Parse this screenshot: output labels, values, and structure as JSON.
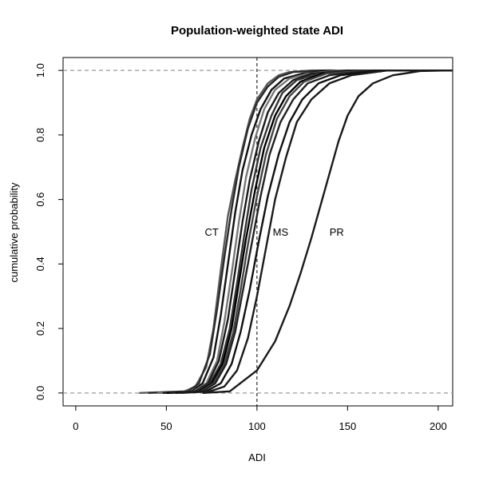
{
  "chart_data": {
    "type": "line",
    "title": "Population-weighted state ADI",
    "xlabel": "ADI",
    "ylabel": "cumulative probability",
    "xlim": [
      -7,
      208
    ],
    "ylim": [
      -0.04,
      1.04
    ],
    "xticks": [
      0,
      50,
      100,
      150,
      200
    ],
    "yticks": [
      0.0,
      0.2,
      0.4,
      0.6,
      0.8,
      1.0
    ],
    "x_tick_labels": [
      "0",
      "50",
      "100",
      "150",
      "200"
    ],
    "y_tick_labels": [
      "0.0",
      "0.2",
      "0.4",
      "0.6",
      "0.8",
      "1.0"
    ],
    "reference_lines": {
      "horizontal": [
        0.0,
        1.0
      ],
      "vertical": [
        100
      ]
    },
    "grid": false,
    "series_style": "empirical cumulative distribution curves, one per state, dark/gray lines",
    "annotations": [
      {
        "text": "CT",
        "x": 75,
        "y": 0.5
      },
      {
        "text": "MS",
        "x": 113,
        "y": 0.5
      },
      {
        "text": "PR",
        "x": 144,
        "y": 0.5
      }
    ],
    "series": [
      {
        "x": [
          35,
          60,
          66,
          72,
          76,
          80,
          84,
          88,
          92,
          96,
          100,
          106,
          112,
          118,
          130,
          210
        ],
        "y": [
          0,
          0.005,
          0.02,
          0.08,
          0.2,
          0.38,
          0.55,
          0.66,
          0.76,
          0.85,
          0.91,
          0.96,
          0.985,
          0.995,
          1,
          1
        ]
      },
      {
        "x": [
          40,
          62,
          68,
          74,
          78,
          82,
          86,
          90,
          95,
          100,
          106,
          112,
          120,
          135,
          210
        ],
        "y": [
          0,
          0.005,
          0.03,
          0.12,
          0.26,
          0.42,
          0.57,
          0.7,
          0.82,
          0.9,
          0.95,
          0.98,
          0.995,
          1,
          1
        ]
      },
      {
        "x": [
          45,
          64,
          70,
          76,
          80,
          84,
          88,
          92,
          97,
          102,
          108,
          115,
          125,
          140,
          210
        ],
        "y": [
          0,
          0.005,
          0.03,
          0.11,
          0.24,
          0.4,
          0.56,
          0.69,
          0.8,
          0.88,
          0.94,
          0.975,
          0.99,
          1,
          1
        ]
      },
      {
        "x": [
          45,
          65,
          72,
          78,
          82,
          86,
          90,
          94,
          99,
          104,
          110,
          118,
          128,
          145,
          210
        ],
        "y": [
          0,
          0.005,
          0.03,
          0.1,
          0.22,
          0.37,
          0.53,
          0.67,
          0.79,
          0.88,
          0.94,
          0.975,
          0.99,
          1,
          1
        ]
      },
      {
        "x": [
          48,
          66,
          73,
          79,
          84,
          88,
          92,
          96,
          101,
          106,
          112,
          120,
          130,
          150,
          210
        ],
        "y": [
          0,
          0.005,
          0.03,
          0.1,
          0.23,
          0.38,
          0.53,
          0.66,
          0.78,
          0.87,
          0.93,
          0.97,
          0.99,
          1,
          1
        ]
      },
      {
        "x": [
          50,
          67,
          74,
          80,
          85,
          89,
          93,
          97,
          102,
          108,
          114,
          122,
          134,
          155,
          210
        ],
        "y": [
          0,
          0.005,
          0.03,
          0.09,
          0.2,
          0.34,
          0.49,
          0.63,
          0.76,
          0.86,
          0.93,
          0.97,
          0.99,
          1,
          1
        ]
      },
      {
        "x": [
          50,
          68,
          75,
          81,
          86,
          90,
          94,
          99,
          104,
          110,
          116,
          124,
          136,
          158,
          210
        ],
        "y": [
          0,
          0.005,
          0.03,
          0.09,
          0.2,
          0.34,
          0.48,
          0.63,
          0.76,
          0.86,
          0.92,
          0.965,
          0.99,
          1,
          1
        ]
      },
      {
        "x": [
          52,
          69,
          76,
          82,
          87,
          91,
          95,
          100,
          105,
          111,
          118,
          126,
          138,
          160,
          210
        ],
        "y": [
          0,
          0.005,
          0.03,
          0.09,
          0.19,
          0.32,
          0.46,
          0.61,
          0.74,
          0.85,
          0.92,
          0.965,
          0.99,
          1,
          1
        ]
      },
      {
        "x": [
          52,
          70,
          77,
          83,
          88,
          92,
          97,
          102,
          107,
          113,
          120,
          128,
          140,
          162,
          210
        ],
        "y": [
          0,
          0.005,
          0.03,
          0.09,
          0.19,
          0.31,
          0.46,
          0.61,
          0.74,
          0.84,
          0.91,
          0.96,
          0.985,
          1,
          1
        ]
      },
      {
        "x": [
          55,
          72,
          80,
          86,
          91,
          96,
          101,
          106,
          112,
          118,
          125,
          134,
          146,
          168,
          210
        ],
        "y": [
          0,
          0.005,
          0.03,
          0.09,
          0.19,
          0.32,
          0.47,
          0.61,
          0.74,
          0.84,
          0.91,
          0.96,
          0.985,
          1,
          1
        ]
      },
      {
        "x": [
          58,
          74,
          82,
          89,
          95,
          100,
          105,
          110,
          116,
          122,
          130,
          140,
          152,
          172,
          210
        ],
        "y": [
          0,
          0.005,
          0.02,
          0.07,
          0.17,
          0.3,
          0.45,
          0.6,
          0.73,
          0.84,
          0.91,
          0.96,
          0.985,
          1,
          1
        ]
      },
      {
        "x": [
          70,
          85,
          100,
          110,
          118,
          124,
          130,
          135,
          140,
          145,
          150,
          156,
          164,
          175,
          190,
          205
        ],
        "y": [
          0,
          0.005,
          0.07,
          0.16,
          0.27,
          0.37,
          0.48,
          0.58,
          0.68,
          0.78,
          0.86,
          0.92,
          0.96,
          0.985,
          0.998,
          1
        ]
      }
    ]
  }
}
